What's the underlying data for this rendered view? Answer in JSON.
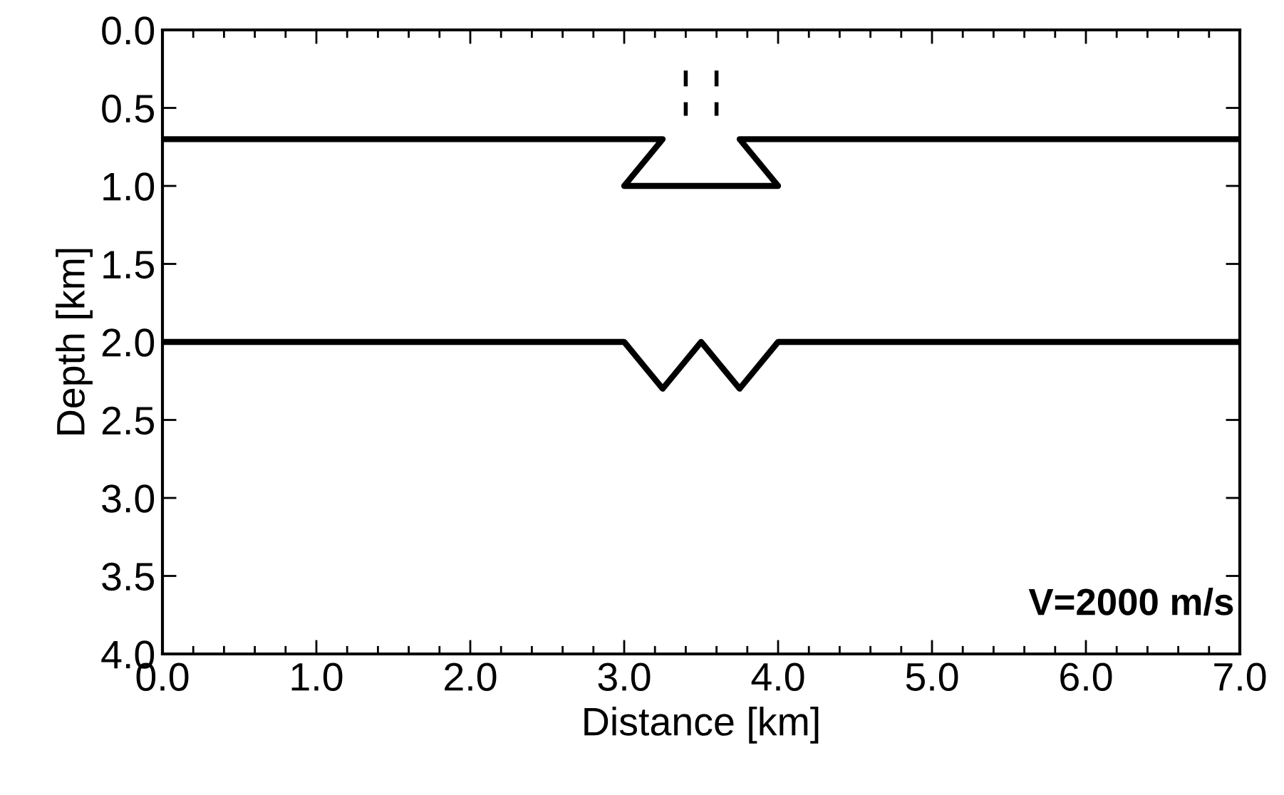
{
  "chart_data": {
    "type": "line",
    "xlabel": "Distance [km]",
    "ylabel": "Depth [km]",
    "series": [
      {
        "color": "#000000",
        "x": [
          0.0,
          3.25,
          3.0,
          4.0,
          3.75,
          7.0
        ],
        "values": [
          0.7,
          0.7,
          1.0,
          1.0,
          0.7,
          0.7
        ]
      },
      {
        "color": "#000000",
        "x": [
          0.0,
          3.0,
          3.25,
          3.5,
          3.75,
          4.0,
          7.0
        ],
        "values": [
          2.0,
          2.0,
          2.3,
          2.0,
          2.3,
          2.0,
          2.0
        ]
      },
      {
        "color": "#000000",
        "line_style": "dashed",
        "x": [
          3.4,
          3.4
        ],
        "values": [
          0.26,
          0.55
        ]
      },
      {
        "color": "#000000",
        "line_style": "dashed",
        "x": [
          3.6,
          3.6
        ],
        "values": [
          0.26,
          0.55
        ]
      }
    ],
    "xlim": [
      0.0,
      7.0
    ],
    "xticks": [
      {
        "value": 0,
        "label": "0.0"
      },
      {
        "value": 1,
        "label": "1.0"
      },
      {
        "value": 2,
        "label": "2.0"
      },
      {
        "value": 3,
        "label": "3.0"
      },
      {
        "value": 4,
        "label": "4.0"
      },
      {
        "value": 5,
        "label": "5.0"
      },
      {
        "value": 6,
        "label": "6.0"
      },
      {
        "value": 7,
        "label": "7.0"
      }
    ],
    "ylim": [
      4.0,
      0.0
    ],
    "yticks": [
      {
        "value": 0,
        "label": "0.0"
      },
      {
        "value": 0.5,
        "label": "0.5"
      },
      {
        "value": 1,
        "label": "1.0"
      },
      {
        "value": 1.5,
        "label": "1.5"
      },
      {
        "value": 2,
        "label": "2.0"
      },
      {
        "value": 2.5,
        "label": "2.5"
      },
      {
        "value": 3,
        "label": "3.0"
      },
      {
        "value": 3.5,
        "label": "3.5"
      },
      {
        "value": 4,
        "label": "4.0"
      }
    ],
    "grid": false,
    "legend": false,
    "marker": "none",
    "line_style": "solid",
    "annotations": [
      "V=2000 m/s"
    ]
  }
}
